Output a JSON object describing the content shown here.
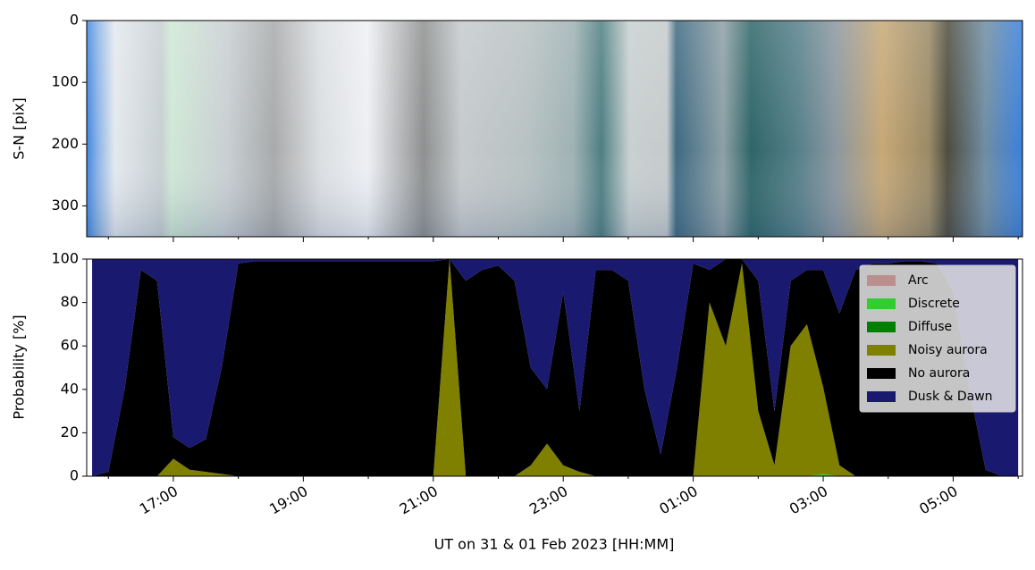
{
  "chart_data": [
    {
      "type": "image",
      "ylabel": "S-N [pix]",
      "ylim": [
        350,
        0
      ],
      "yticks": [
        0,
        100,
        200,
        300
      ]
    },
    {
      "type": "area",
      "xlabel": "UT on 31 & 01 Feb 2023 [HH:MM]",
      "ylabel": "Probability [%]",
      "xlim": [
        "15:40",
        "06:04"
      ],
      "xticks": [
        "17:00",
        "19:00",
        "21:00",
        "23:00",
        "01:00",
        "03:00",
        "05:00"
      ],
      "xminorticks": [
        "16:00",
        "18:00",
        "20:00",
        "22:00",
        "00:00",
        "02:00",
        "04:00",
        "06:00"
      ],
      "ylim": [
        0,
        100
      ],
      "yticks": [
        0,
        20,
        40,
        60,
        80,
        100
      ],
      "stacked": true,
      "legend": "upper right",
      "x": [
        "15:45",
        "16:00",
        "16:15",
        "16:30",
        "16:45",
        "17:00",
        "17:15",
        "17:30",
        "17:45",
        "18:00",
        "18:15",
        "18:30",
        "18:45",
        "19:00",
        "19:15",
        "19:30",
        "19:45",
        "20:00",
        "20:15",
        "20:30",
        "20:45",
        "21:00",
        "21:15",
        "21:30",
        "21:45",
        "22:00",
        "22:15",
        "22:30",
        "22:45",
        "23:00",
        "23:15",
        "23:30",
        "23:45",
        "00:00",
        "00:15",
        "00:30",
        "00:45",
        "01:00",
        "01:15",
        "01:30",
        "01:45",
        "02:00",
        "02:15",
        "02:30",
        "02:45",
        "03:00",
        "03:15",
        "03:30",
        "03:45",
        "04:00",
        "04:15",
        "04:30",
        "04:45",
        "05:00",
        "05:15",
        "05:30",
        "05:45",
        "06:00"
      ],
      "series": [
        {
          "name": "Arc",
          "color": "#bc8f8f",
          "values": [
            0,
            0,
            0,
            0,
            0,
            0,
            0,
            0,
            0,
            0,
            0,
            0,
            0,
            0,
            0,
            0,
            0,
            0,
            0,
            0,
            0,
            0,
            0,
            0,
            0,
            0,
            0,
            0,
            0,
            0,
            0,
            0,
            0,
            0,
            0,
            0,
            0,
            0,
            0,
            0,
            0,
            0,
            0,
            0,
            0,
            0,
            0,
            0,
            0,
            0,
            0,
            0,
            0,
            0,
            0,
            0,
            0,
            0
          ]
        },
        {
          "name": "Discrete",
          "color": "#32cd32",
          "values": [
            0,
            0,
            0,
            0,
            0,
            0,
            0,
            0,
            0,
            0,
            0,
            0,
            0,
            0,
            0,
            0,
            0,
            0,
            0,
            0,
            0,
            0,
            0,
            0,
            0,
            0,
            0,
            0,
            0,
            0,
            0,
            0,
            0,
            0,
            0,
            0,
            0,
            0,
            0,
            0,
            0,
            0,
            0,
            0,
            0,
            1,
            0,
            0,
            0,
            0,
            0,
            0,
            0,
            0,
            0,
            0,
            0,
            0
          ]
        },
        {
          "name": "Diffuse",
          "color": "#008000",
          "values": [
            0,
            0,
            0,
            0,
            0,
            0,
            0,
            0,
            0,
            0,
            0,
            0,
            0,
            0,
            0,
            0,
            0,
            0,
            0,
            0,
            0,
            0,
            0,
            0,
            0,
            0,
            0,
            0,
            0,
            0,
            0,
            0,
            0,
            0,
            0,
            0,
            0,
            0,
            0,
            0,
            0,
            0,
            0,
            0,
            0,
            0,
            0,
            0,
            0,
            0,
            0,
            0,
            0,
            0,
            0,
            0,
            0,
            0
          ]
        },
        {
          "name": "Noisy aurora",
          "color": "#808000",
          "values": [
            0,
            0,
            0,
            0,
            0,
            8,
            3,
            2,
            1,
            0,
            0,
            0,
            0,
            0,
            0,
            0,
            0,
            0,
            0,
            0,
            0,
            0,
            100,
            0,
            0,
            0,
            0,
            5,
            15,
            5,
            2,
            0,
            0,
            0,
            0,
            0,
            0,
            0,
            80,
            60,
            98,
            30,
            5,
            60,
            70,
            40,
            5,
            0,
            0,
            0,
            0,
            0,
            0,
            0,
            0,
            0,
            0,
            0
          ]
        },
        {
          "name": "No aurora",
          "color": "#000000",
          "values": [
            0,
            2,
            40,
            95,
            90,
            10,
            10,
            15,
            50,
            98,
            99,
            99,
            99,
            99,
            99,
            99,
            99,
            99,
            99,
            99,
            99,
            99,
            0,
            90,
            95,
            97,
            90,
            45,
            25,
            80,
            28,
            95,
            95,
            90,
            40,
            10,
            50,
            98,
            15,
            40,
            2,
            60,
            25,
            30,
            25,
            54,
            70,
            95,
            98,
            98,
            99,
            99,
            98,
            85,
            40,
            3,
            0,
            0
          ]
        },
        {
          "name": "Dusk & Dawn",
          "color": "#191970",
          "values": [
            100,
            98,
            60,
            5,
            10,
            82,
            87,
            83,
            49,
            2,
            1,
            1,
            1,
            1,
            1,
            1,
            1,
            1,
            1,
            1,
            1,
            1,
            0,
            10,
            5,
            3,
            10,
            50,
            60,
            15,
            70,
            5,
            5,
            10,
            60,
            90,
            50,
            2,
            5,
            0,
            0,
            10,
            70,
            10,
            5,
            5,
            25,
            5,
            2,
            2,
            1,
            1,
            2,
            15,
            60,
            97,
            100,
            100
          ]
        }
      ]
    }
  ]
}
